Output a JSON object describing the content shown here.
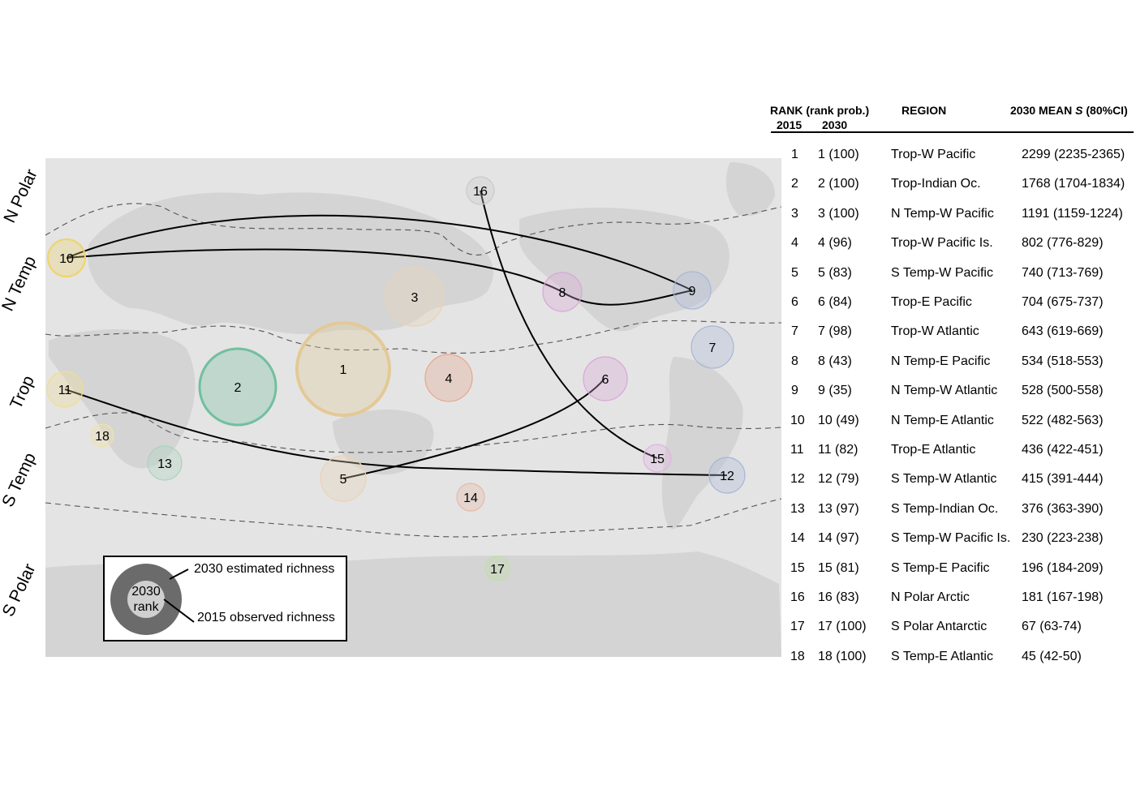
{
  "zones": [
    "N Polar",
    "N Temp",
    "Trop",
    "S Temp",
    "S Polar"
  ],
  "bubbles": [
    {
      "label": "1",
      "color": "#e3c996"
    },
    {
      "label": "2",
      "color": "#72bfa0"
    },
    {
      "label": "3",
      "color": "#e8d3b4"
    },
    {
      "label": "4",
      "color": "#e6a68a"
    },
    {
      "label": "5",
      "color": "#e8d3b4"
    },
    {
      "label": "6",
      "color": "#d9a6d8"
    },
    {
      "label": "7",
      "color": "#a9b6d8"
    },
    {
      "label": "8",
      "color": "#d9a6d8"
    },
    {
      "label": "9",
      "color": "#a9b6d8"
    },
    {
      "label": "10",
      "color": "#efd36a"
    },
    {
      "label": "11",
      "color": "#f0dd94"
    },
    {
      "label": "12",
      "color": "#a9b6d8"
    },
    {
      "label": "13",
      "color": "#a8d4bd"
    },
    {
      "label": "14",
      "color": "#e9b8a6"
    },
    {
      "label": "15",
      "color": "#e0b4df"
    },
    {
      "label": "16",
      "color": "#c9c9c9"
    },
    {
      "label": "17",
      "color": "#c2dea4"
    },
    {
      "label": "18",
      "color": "#f1e2a8"
    }
  ],
  "legend": {
    "inner_text_1": "2030",
    "inner_text_2": "rank",
    "estimated_label": "2030 estimated richness",
    "observed_label": "2015 observed richness"
  },
  "table": {
    "header_rank": "RANK (rank prob.)",
    "header_2015": "2015",
    "header_2030": "2030",
    "header_region": "REGION",
    "header_mean": "2030 MEAN ",
    "header_mean_italic": "S",
    "header_mean_ci": " (80%CI)",
    "rows": [
      {
        "rank2015": "1",
        "rank2030": "1 (100)",
        "region": "Trop-W Pacific",
        "mean": "2299 (2235-2365)"
      },
      {
        "rank2015": "2",
        "rank2030": "2 (100)",
        "region": "Trop-Indian Oc.",
        "mean": "1768 (1704-1834)"
      },
      {
        "rank2015": "3",
        "rank2030": "3 (100)",
        "region": "N Temp-W Pacific",
        "mean": "1191 (1159-1224)"
      },
      {
        "rank2015": "4",
        "rank2030": "4 (96)",
        "region": "Trop-W Pacific Is.",
        "mean": "802 (776-829)"
      },
      {
        "rank2015": "5",
        "rank2030": "5 (83)",
        "region": "S Temp-W Pacific",
        "mean": "740 (713-769)"
      },
      {
        "rank2015": "6",
        "rank2030": "6 (84)",
        "region": "Trop-E Pacific",
        "mean": "704 (675-737)"
      },
      {
        "rank2015": "7",
        "rank2030": "7 (98)",
        "region": "Trop-W Atlantic",
        "mean": "643 (619-669)"
      },
      {
        "rank2015": "8",
        "rank2030": "8 (43)",
        "region": "N Temp-E Pacific",
        "mean": "534 (518-553)"
      },
      {
        "rank2015": "9",
        "rank2030": "9 (35)",
        "region": "N Temp-W Atlantic",
        "mean": "528 (500-558)"
      },
      {
        "rank2015": "10",
        "rank2030": "10 (49)",
        "region": "N Temp-E Atlantic",
        "mean": "522 (482-563)"
      },
      {
        "rank2015": "11",
        "rank2030": "11 (82)",
        "region": "Trop-E Atlantic",
        "mean": "436 (422-451)"
      },
      {
        "rank2015": "12",
        "rank2030": "12 (79)",
        "region": "S Temp-W Atlantic",
        "mean": "415 (391-444)"
      },
      {
        "rank2015": "13",
        "rank2030": "13 (97)",
        "region": "S Temp-Indian Oc.",
        "mean": "376 (363-390)"
      },
      {
        "rank2015": "14",
        "rank2030": "14 (97)",
        "region": "S Temp-W Pacific Is.",
        "mean": "230 (223-238)"
      },
      {
        "rank2015": "15",
        "rank2030": "15 (81)",
        "region": "S Temp-E Pacific",
        "mean": "196 (184-209)"
      },
      {
        "rank2015": "16",
        "rank2030": "16 (83)",
        "region": "N Polar Arctic",
        "mean": "181 (167-198)"
      },
      {
        "rank2015": "17",
        "rank2030": "17 (100)",
        "region": "S Polar Antarctic",
        "mean": "67 (63-74)"
      },
      {
        "rank2015": "18",
        "rank2030": "18 (100)",
        "region": "S Temp-E Atlantic",
        "mean": "45 (42-50)"
      }
    ]
  }
}
